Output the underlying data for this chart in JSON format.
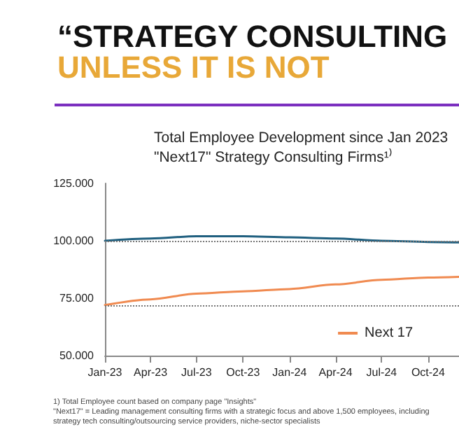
{
  "chart_data": {
    "type": "line",
    "title": "“STRATEGY CONSULTING",
    "subtitle": "UNLESS IT IS NOT",
    "annotations": [
      "Total Employee Development since Jan 2023",
      "\"Next17\" Strategy Consulting Firms¹⁾",
      "1) Total Employee count based on company page \"Insights\"",
      "\"Next17\" = Leading management consulting firms with a strategic focus and above 1,500 employees, including strategy tech consulting/outsourcing service providers, niche-sector specialists"
    ],
    "x": [
      "2023-01",
      "2023-04",
      "2023-07",
      "2023-10",
      "2024-01",
      "2024-04",
      "2024-07",
      "2024-10",
      "2024-12"
    ],
    "series": [
      {
        "color": "#1f5f7f",
        "values": [
          100,
          101,
          102,
          102,
          101.5,
          101,
          100,
          99.5,
          99.3
        ]
      },
      {
        "name": "Next 17",
        "color": "#f08a50",
        "values": [
          72,
          74.5,
          77,
          78,
          79,
          81,
          83,
          84,
          84.3
        ]
      }
    ],
    "xlim": [
      "2023-01",
      "2024-12"
    ],
    "xticks": [
      {
        "value": "2023-01",
        "label": "Jan-23"
      },
      {
        "value": "2023-04",
        "label": "Apr-23"
      },
      {
        "value": "2023-07",
        "label": "Jul-23"
      },
      {
        "value": "2023-10",
        "label": "Oct-23"
      },
      {
        "value": "2024-01",
        "label": "Jan-24"
      },
      {
        "value": "2024-04",
        "label": "Apr-24"
      },
      {
        "value": "2024-07",
        "label": "Jul-24"
      },
      {
        "value": "2024-10",
        "label": "Oct-24"
      }
    ],
    "ylim": [
      50,
      125
    ],
    "yticks": [
      {
        "value": 50,
        "label": "50.000"
      },
      {
        "value": 75,
        "label": "75.000"
      },
      {
        "value": 100,
        "label": "100.000"
      },
      {
        "value": 125,
        "label": "125.000"
      }
    ],
    "ref_lines": [
      {
        "axis": "y",
        "value": 100,
        "color": "#777777",
        "line_style": "dotted"
      },
      {
        "axis": "y",
        "value": 72,
        "color": "#777777",
        "line_style": "dotted"
      }
    ],
    "grid": false,
    "legend": "bottom right",
    "marker": "none",
    "line_style": "solid"
  }
}
